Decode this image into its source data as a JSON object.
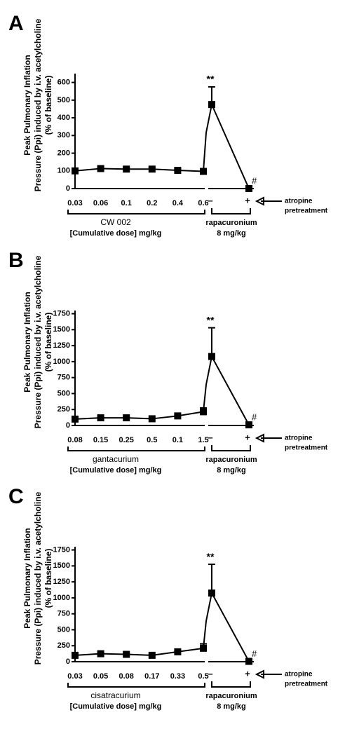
{
  "chart_data": [
    {
      "type": "line",
      "panel": "A",
      "ylabel": [
        "Peak Pulmonary Inflation",
        "Pressure (Ppi) induced by  i.v. acetylcholine",
        "(% of baseline)"
      ],
      "categories": [
        "0.03",
        "0.06",
        "0.1",
        "0.2",
        "0.4",
        "0.6"
      ],
      "values": [
        100,
        113,
        110,
        110,
        103,
        97
      ],
      "errors": [
        12,
        8,
        8,
        10,
        8,
        8
      ],
      "drug_label": "CW 002",
      "dose_label": "[Cumulative dose] mg/kg",
      "rapacuronium": {
        "categories": [
          "–",
          "+"
        ],
        "values": [
          475,
          0
        ],
        "errors": [
          100,
          0
        ],
        "label": "rapacuronium",
        "dose": "8 mg/kg"
      },
      "annotations": [
        "**",
        "#"
      ],
      "atropine_label": [
        "atropine",
        "pretreatment"
      ],
      "color": "#000000",
      "ylim": [
        0,
        650
      ],
      "yticks": [
        0,
        100,
        200,
        300,
        400,
        500,
        600
      ]
    },
    {
      "type": "line",
      "panel": "B",
      "ylabel": [
        "Peak Pulmonary Inflation",
        "Pressure (Ppi) induced by  i.v. acetylcholine",
        "(% of baseline)"
      ],
      "categories": [
        "0.08",
        "0.15",
        "0.25",
        "0.5",
        "0.1",
        "1.5"
      ],
      "values": [
        100,
        120,
        120,
        105,
        150,
        215
      ],
      "errors": [
        20,
        15,
        15,
        10,
        15,
        60
      ],
      "drug_label": "gantacurium",
      "dose_label": "[Cumulative dose] mg/kg",
      "rapacuronium": {
        "categories": [
          "–",
          "+"
        ],
        "values": [
          1080,
          10
        ],
        "errors": [
          450,
          0
        ],
        "label": "rapacuronium",
        "dose": "8 mg/kg"
      },
      "annotations": [
        "**",
        "#"
      ],
      "atropine_label": [
        "atropine",
        "pretreatment"
      ],
      "color": "#000000",
      "ylim": [
        0,
        1800
      ],
      "yticks": [
        0,
        250,
        500,
        750,
        1000,
        1250,
        1500,
        1750
      ]
    },
    {
      "type": "line",
      "panel": "C",
      "ylabel": [
        "Peak Pulmonary Inflation",
        "Pressure (Ppi) induced by  i.v. acetylcholine",
        "(% of baseline)"
      ],
      "categories": [
        "0.03",
        "0.05",
        "0.08",
        "0.17",
        "0.33",
        "0.5"
      ],
      "values": [
        100,
        125,
        115,
        100,
        155,
        210
      ],
      "errors": [
        20,
        10,
        10,
        10,
        15,
        70
      ],
      "drug_label": "cisatracurium",
      "dose_label": "[Cumulative dose] mg/kg",
      "rapacuronium": {
        "categories": [
          "–",
          "+"
        ],
        "values": [
          1075,
          5
        ],
        "errors": [
          450,
          0
        ],
        "label": "rapacuronium",
        "dose": "8 mg/kg"
      },
      "annotations": [
        "**",
        "#"
      ],
      "atropine_label": [
        "atropine",
        "pretreatment"
      ],
      "color": "#000000",
      "ylim": [
        0,
        1800
      ],
      "yticks": [
        0,
        250,
        500,
        750,
        1000,
        1250,
        1500,
        1750
      ]
    }
  ]
}
